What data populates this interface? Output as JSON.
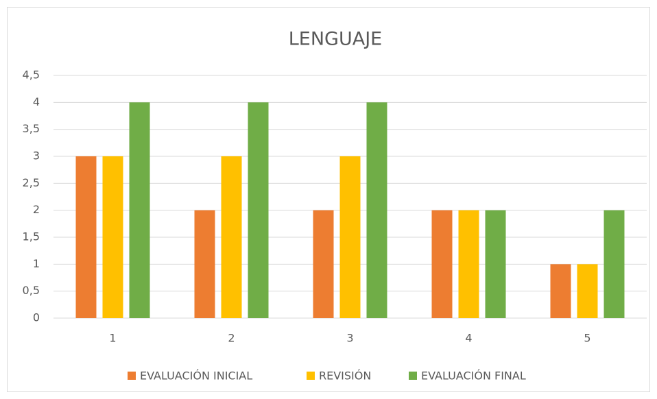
{
  "chart_data": {
    "type": "bar",
    "title": "LENGUAJE",
    "categories": [
      "1",
      "2",
      "3",
      "4",
      "5"
    ],
    "series": [
      {
        "name": "EVALUACIÓN INICIAL",
        "color": "#ED7D31",
        "values": [
          3,
          2,
          2,
          2,
          1
        ]
      },
      {
        "name": "REVISIÓN",
        "color": "#FFC000",
        "values": [
          3,
          3,
          3,
          2,
          1
        ]
      },
      {
        "name": "EVALUACIÓN FINAL",
        "color": "#70AD47",
        "values": [
          4,
          4,
          4,
          2,
          2
        ]
      }
    ],
    "ylim": [
      0,
      4.5
    ],
    "yticks": [
      0,
      {
        "value": 0.5,
        "label": "0,5"
      },
      1,
      {
        "value": 1.5,
        "label": "1,5"
      },
      2,
      {
        "value": 2.5,
        "label": "2,5"
      },
      3,
      {
        "value": 3.5,
        "label": "3,5"
      },
      4,
      {
        "value": 4.5,
        "label": "4,5"
      }
    ],
    "grid": true,
    "legend": "bottom"
  }
}
